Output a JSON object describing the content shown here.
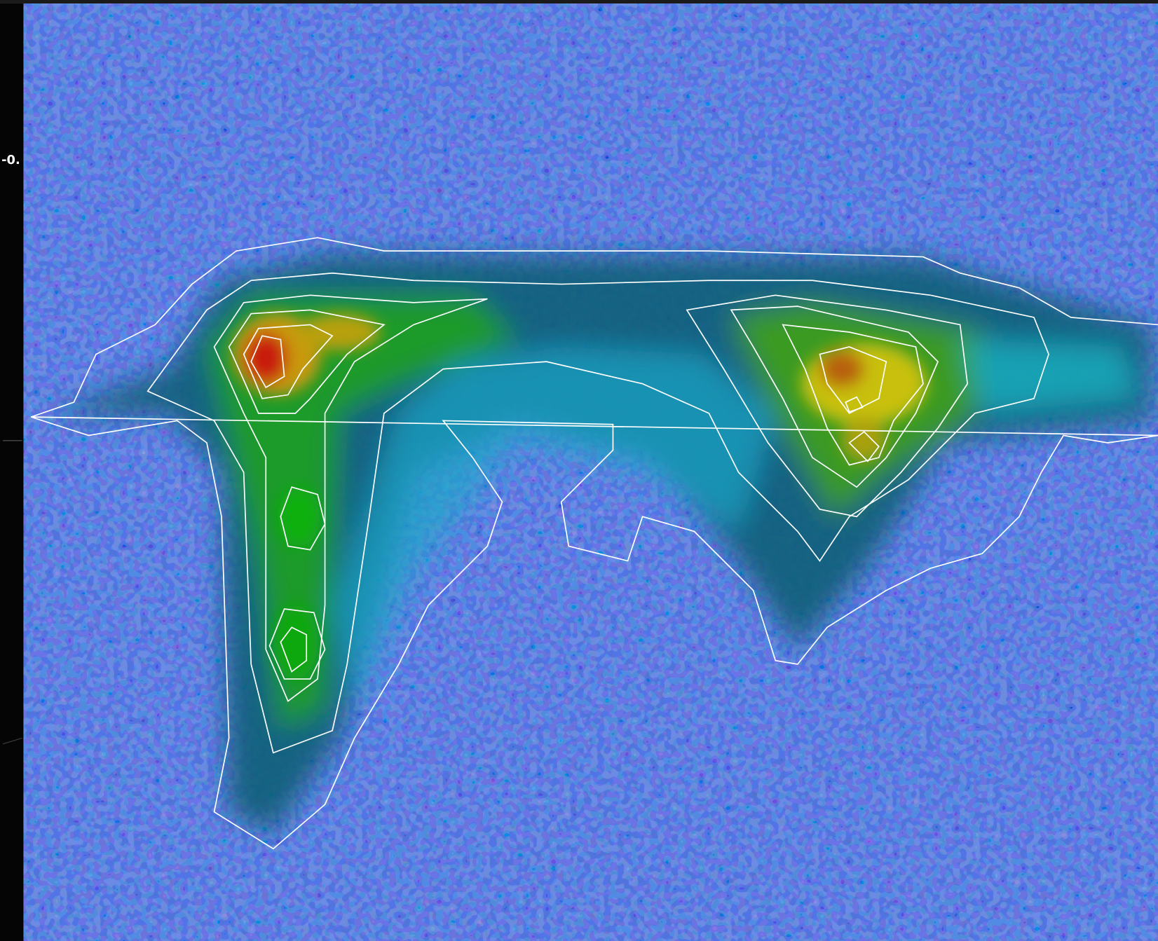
{
  "axis": {
    "tick_label": "-0."
  }
}
